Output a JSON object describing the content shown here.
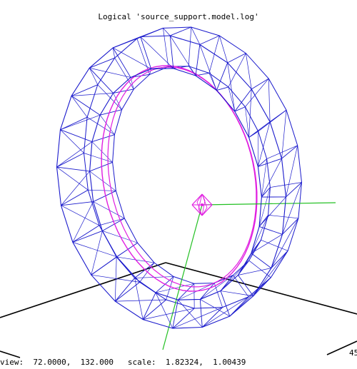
{
  "viewer": {
    "title": "Logical 'source_support.model.log'",
    "status": {
      "view_label": "view:",
      "view_values": "72.0000,  132.000",
      "scale_label": "scale:",
      "scale_values": "1.82324,  1.00439"
    },
    "corner_label": "45"
  },
  "colors": {
    "background": "#ffffff",
    "ring_wire": "#1a1acc",
    "inner_ring": "#e01ee0",
    "source_marker": "#e01ee0",
    "axis_green": "#22c022",
    "floor_lines": "#000000"
  },
  "ring_geometry": {
    "segments": 24
  }
}
